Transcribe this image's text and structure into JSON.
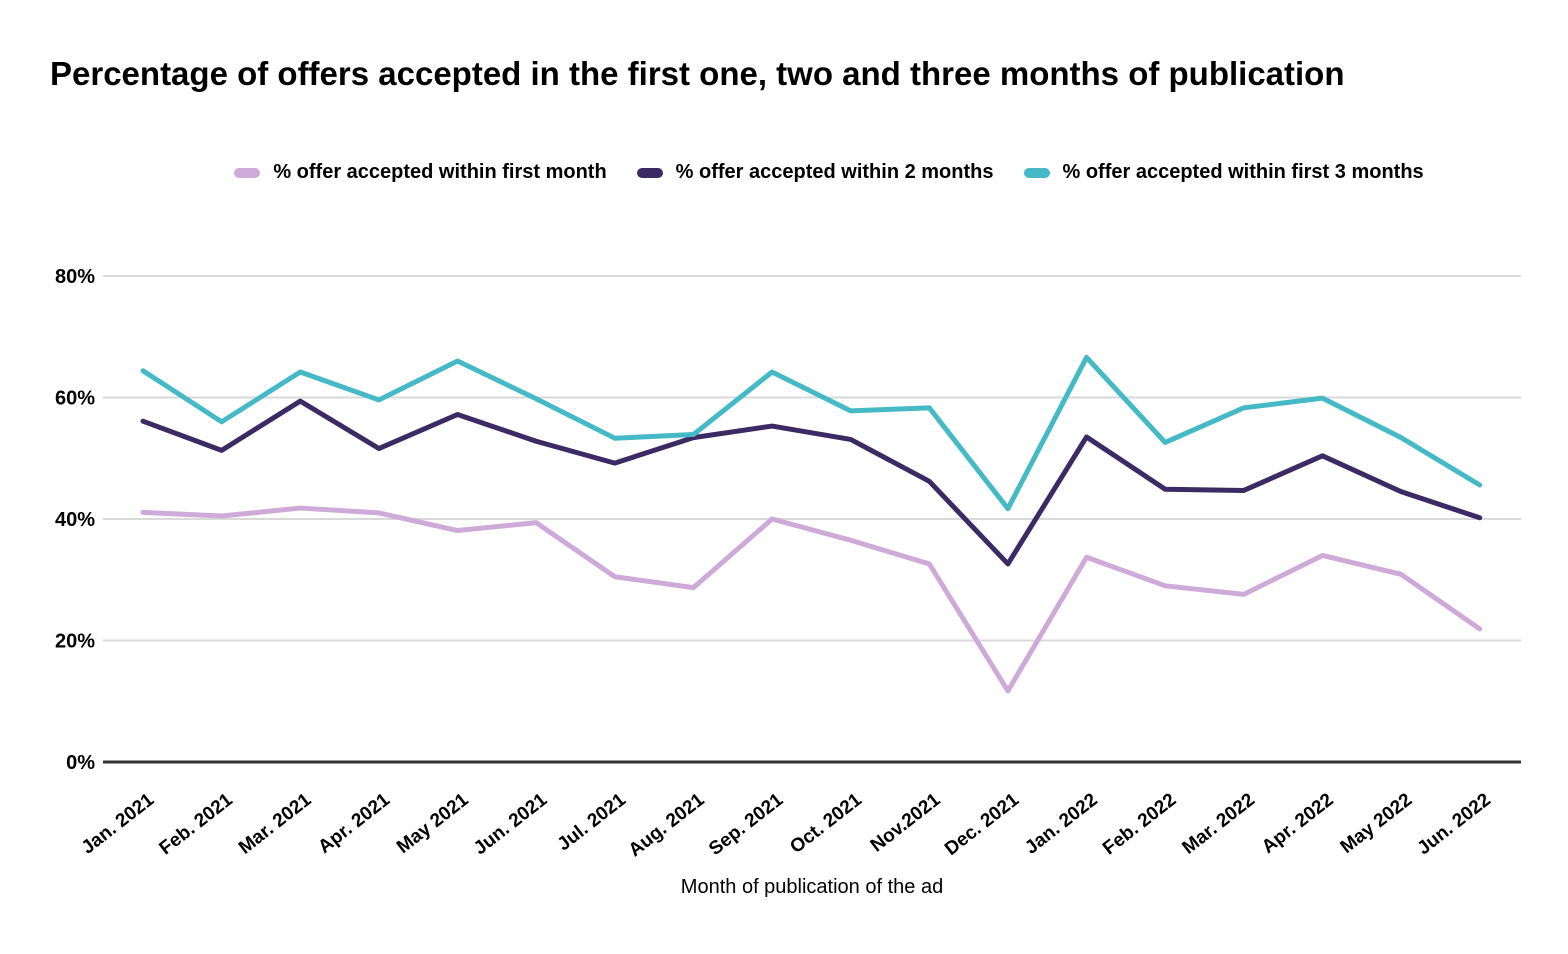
{
  "title": "Percentage of offers accepted in the first one, two and three months of publication",
  "colors": {
    "gridline": "#d9d9d9",
    "axis_line": "#333333",
    "text": "#000000",
    "series_first_month": "#cdaad7",
    "series_two_months": "#3b2a64",
    "series_three_months": "#45b9c6"
  },
  "chart_data": {
    "type": "line",
    "title": "Percentage of offers accepted in the first one, two and three months of publication",
    "xlabel": "Month of publication of the ad",
    "ylabel": "",
    "ylim": [
      0,
      80
    ],
    "grid": true,
    "legend_position": "top",
    "yticks": [
      "0%",
      "20%",
      "40%",
      "60%",
      "80%"
    ],
    "ytick_values": [
      0,
      20,
      40,
      60,
      80
    ],
    "categories": [
      "Jan. 2021",
      "Feb. 2021",
      "Mar. 2021",
      "Apr. 2021",
      "May 2021",
      "Jun. 2021",
      "Jul. 2021",
      "Aug. 2021",
      "Sep. 2021",
      "Oct. 2021",
      "Nov.2021",
      "Dec. 2021",
      "Jan. 2022",
      "Feb. 2022",
      "Mar. 2022",
      "Apr. 2022",
      "May 2022",
      "Jun. 2022"
    ],
    "series": [
      {
        "name": "% offer accepted within first month",
        "color": "#cdaad7",
        "values": [
          41.1,
          40.5,
          41.8,
          41.0,
          38.1,
          39.4,
          30.5,
          28.7,
          40.0,
          36.5,
          32.6,
          11.7,
          33.7,
          29.0,
          27.6,
          34.0,
          30.9,
          21.9
        ]
      },
      {
        "name": "% offer accepted within 2 months",
        "color": "#3b2a64",
        "values": [
          56.1,
          51.3,
          59.4,
          51.6,
          57.2,
          52.8,
          49.2,
          53.4,
          55.3,
          53.1,
          46.2,
          32.6,
          53.5,
          44.9,
          44.7,
          50.4,
          44.5,
          40.2
        ]
      },
      {
        "name": "% offer accepted within first 3 months",
        "color": "#45b9c6",
        "values": [
          64.4,
          56.0,
          64.2,
          59.6,
          66.0,
          59.8,
          53.3,
          53.9,
          64.2,
          57.8,
          58.3,
          41.7,
          66.6,
          52.6,
          58.3,
          59.9,
          53.4,
          45.6
        ]
      }
    ]
  }
}
